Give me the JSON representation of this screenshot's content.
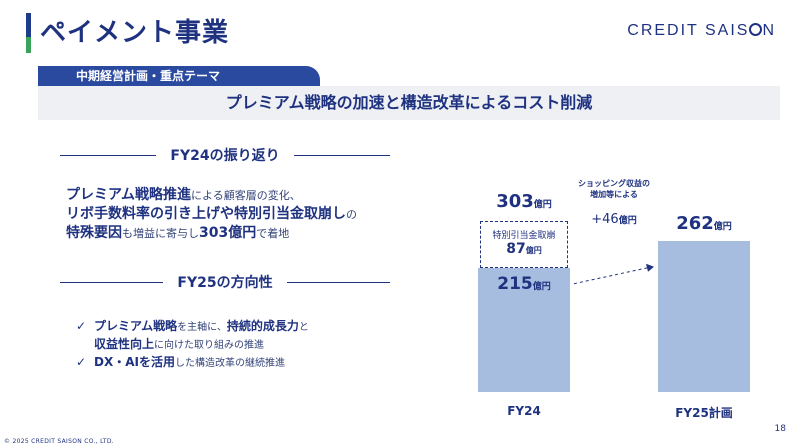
{
  "header": {
    "title": "ペイメント事業",
    "brand": "CREDIT SAIS",
    "brand_tail": "N"
  },
  "tab": {
    "label": "中期経営計画・重点テーマ"
  },
  "banner": {
    "text": "プレミアム戦略の加速と構造改革によるコスト削減"
  },
  "recap": {
    "heading": "FY24の振り返り",
    "l1a": "プレミアム戦略推進",
    "l1b": "による顧客層の変化、",
    "l2": "リボ手数料率の引き上げや特別引当金取崩し",
    "l2b": "の",
    "l3a": "特殊要因",
    "l3b": "も増益に寄与し",
    "l3c": "303億円",
    "l3d": "で着地"
  },
  "direction": {
    "heading": "FY25の方向性",
    "check": "✓",
    "b1a": "プレミアム戦略",
    "b1b": "を主軸に、",
    "b1c": "持続的成長力",
    "b1d": "と",
    "b2a": "収益性向上",
    "b2b": "に向けた取り組みの推進",
    "b3a": "DX・AIを活用",
    "b3b": "した構造改革の継続推進"
  },
  "chart_data": {
    "type": "bar",
    "unit": "億円",
    "categories": [
      "FY24",
      "FY25計画"
    ],
    "values": [
      303,
      262
    ],
    "segments": [
      {
        "category": "FY24",
        "label": "",
        "value": 215
      },
      {
        "category": "FY24",
        "label": "特別引当金取崩",
        "value": 87
      }
    ],
    "annotation": {
      "line1": "ショッピング収益の",
      "line2": "増加等による",
      "value": "+46",
      "unit": "億円"
    },
    "ylim": [
      0,
      320
    ]
  },
  "labels": {
    "fy24_total": "303",
    "fy24_base": "215",
    "fy24_special": "87",
    "fy25_total": "262",
    "unit": "億円"
  },
  "footer": {
    "copyright": "© 2025 CREDIT SAISON CO., LTD.",
    "page": "18"
  },
  "colors": {
    "primary": "#1f3280",
    "bar": "#a7bde0",
    "accent_green": "#3aa35a",
    "tab": "#2a4aa0"
  }
}
